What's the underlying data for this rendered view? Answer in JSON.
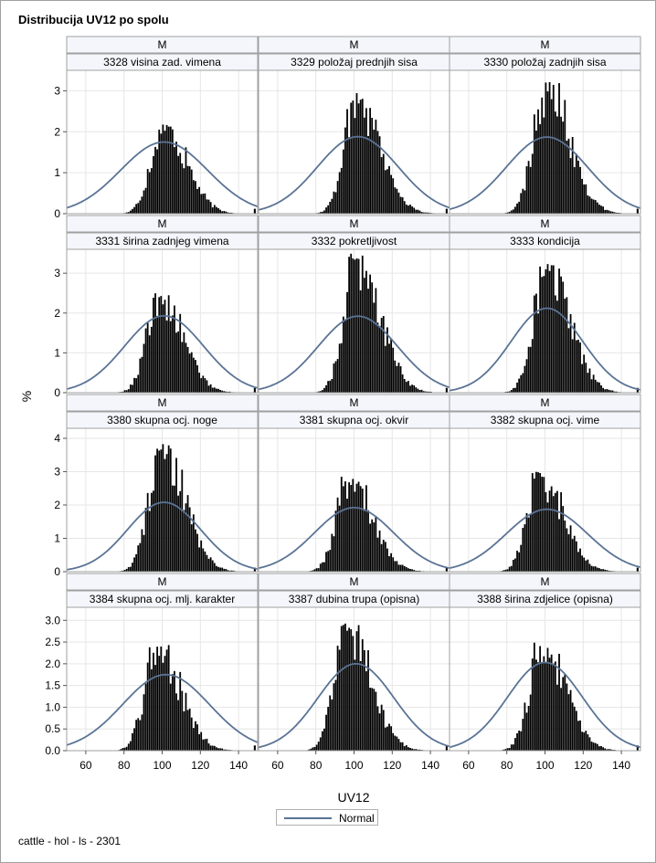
{
  "figure": {
    "title": "Distribucija UV12 po spolu",
    "footnote": "cattle - hol - ls - 2301",
    "ylabel": "%",
    "xlabel": "UV12",
    "legend": {
      "label": "Normal",
      "line_color": "#5a7395"
    },
    "colors": {
      "bar": "#000000",
      "curve": "#5a7395",
      "grid": "#e6e6e6",
      "header_bg": "#f4f6fb",
      "border": "#a0a0a0"
    }
  },
  "chart_data": {
    "type": "bar",
    "layout": "panel grid, 4 rows x 3 columns, shared x axis",
    "group_label": "M",
    "xlim": [
      50,
      150
    ],
    "xticks": [
      60,
      80,
      100,
      120,
      140
    ],
    "bin_width": 1,
    "row_axes": [
      {
        "ylim": [
          0,
          3.5
        ],
        "yticks": [
          "0",
          "1",
          "2",
          "3"
        ],
        "tick_values": [
          0,
          1,
          2,
          3
        ]
      },
      {
        "ylim": [
          0,
          3.6
        ],
        "yticks": [
          "0",
          "1",
          "2",
          "3"
        ],
        "tick_values": [
          0,
          1,
          2,
          3
        ]
      },
      {
        "ylim": [
          0,
          4.3
        ],
        "yticks": [
          "0",
          "1",
          "2",
          "3",
          "4"
        ],
        "tick_values": [
          0,
          1,
          2,
          3,
          4
        ]
      },
      {
        "ylim": [
          0,
          3.3
        ],
        "yticks": [
          "0.0",
          "0.5",
          "1.0",
          "1.5",
          "2.0",
          "2.5",
          "3.0"
        ],
        "tick_values": [
          0,
          0.5,
          1,
          1.5,
          2,
          2.5,
          3
        ]
      }
    ],
    "panels": [
      {
        "name": "3328 visina zad. vimena",
        "row": 0,
        "col": 0,
        "normal": {
          "mean": 101,
          "peak": 1.75
        },
        "hist_peak": 2.2,
        "hist_center": 100
      },
      {
        "name": "3329 položaj prednjih sisa",
        "row": 0,
        "col": 1,
        "normal": {
          "mean": 102,
          "peak": 1.88
        },
        "hist_peak": 2.95,
        "hist_center": 101
      },
      {
        "name": "3330 položaj zadnjih sisa",
        "row": 0,
        "col": 2,
        "normal": {
          "mean": 101,
          "peak": 1.87
        },
        "hist_peak": 3.3,
        "hist_center": 100
      },
      {
        "name": "3331 širina zadnjeg vimena",
        "row": 1,
        "col": 0,
        "normal": {
          "mean": 101,
          "peak": 1.93
        },
        "hist_peak": 2.5,
        "hist_center": 98
      },
      {
        "name": "3332 pokretljivost",
        "row": 1,
        "col": 1,
        "normal": {
          "mean": 102,
          "peak": 1.92
        },
        "hist_peak": 3.5,
        "hist_center": 101
      },
      {
        "name": "3333 kondicija",
        "row": 1,
        "col": 2,
        "normal": {
          "mean": 101,
          "peak": 2.12
        },
        "hist_peak": 3.25,
        "hist_center": 100
      },
      {
        "name": "3380 skupna ocj. noge",
        "row": 2,
        "col": 0,
        "normal": {
          "mean": 101,
          "peak": 2.08
        },
        "hist_peak": 3.85,
        "hist_center": 99
      },
      {
        "name": "3381 skupna ocj. okvir",
        "row": 2,
        "col": 1,
        "normal": {
          "mean": 100,
          "peak": 1.92
        },
        "hist_peak": 2.85,
        "hist_center": 97
      },
      {
        "name": "3382 skupna ocj. vime",
        "row": 2,
        "col": 2,
        "normal": {
          "mean": 101,
          "peak": 1.87
        },
        "hist_peak": 3.0,
        "hist_center": 97
      },
      {
        "name": "3384 skupna ocj. mlj. karakter",
        "row": 3,
        "col": 0,
        "normal": {
          "mean": 102,
          "peak": 1.75
        },
        "hist_peak": 2.45,
        "hist_center": 97
      },
      {
        "name": "3387 dubina trupa (opisna)",
        "row": 3,
        "col": 1,
        "normal": {
          "mean": 101,
          "peak": 2.0
        },
        "hist_peak": 2.95,
        "hist_center": 96
      },
      {
        "name": "3388 širina zdjelice (opisna)",
        "row": 3,
        "col": 2,
        "normal": {
          "mean": 100,
          "peak": 2.03
        },
        "hist_peak": 2.5,
        "hist_center": 98
      }
    ]
  }
}
